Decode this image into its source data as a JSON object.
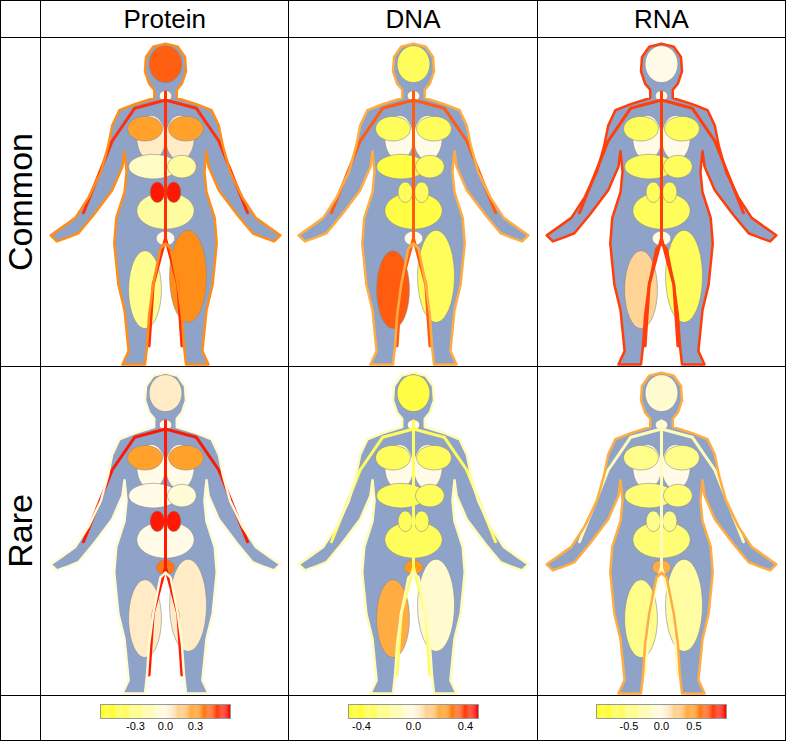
{
  "chart_data": {
    "type": "anatomogram",
    "rows": [
      "Common",
      "Rare"
    ],
    "columns": [
      {
        "title": "Protein",
        "colorbar": {
          "range": [
            -0.65,
            0.65
          ],
          "ticks": [
            -0.3,
            {
              "value": 0,
              "label": "0.0"
            },
            0.3
          ]
        },
        "values": [
          [
            0.45,
            0.0,
            0.05,
            0.3,
            -0.1,
            -0.2,
            -0.2,
            0.6,
            0.0,
            -0.25,
            0.35,
            0.55,
            0.35
          ],
          [
            0.05,
            0.0,
            0.0,
            0.3,
            0.0,
            -0.05,
            0.0,
            0.6,
            0.4,
            0.05,
            0.05,
            0.6,
            -0.05
          ]
        ]
      },
      {
        "title": "DNA",
        "colorbar": {
          "range": [
            -0.5,
            0.5
          ],
          "ticks": [
            -0.4,
            {
              "value": 0,
              "label": "0.0"
            },
            0.4
          ]
        },
        "values": [
          [
            -0.3,
            0.0,
            0.0,
            -0.3,
            -0.35,
            -0.3,
            -0.35,
            -0.3,
            0.0,
            0.35,
            -0.3,
            0.35,
            0.2
          ],
          [
            -0.35,
            0.0,
            0.0,
            -0.3,
            -0.3,
            -0.3,
            -0.3,
            -0.3,
            0.25,
            0.2,
            -0.05,
            -0.3,
            -0.1
          ]
        ]
      },
      {
        "title": "RNA",
        "colorbar": {
          "range": [
            -1,
            1
          ],
          "ticks": [
            -0.5,
            {
              "value": 0,
              "label": "0.0"
            },
            0.5
          ]
        },
        "values": [
          [
            0.0,
            0.0,
            0.0,
            -0.6,
            -0.6,
            -0.6,
            -0.6,
            -0.6,
            0.0,
            0.2,
            -0.6,
            0.8,
            0.8
          ],
          [
            -0.1,
            0.0,
            0.0,
            -0.4,
            -0.5,
            -0.5,
            -0.5,
            -0.4,
            0.4,
            -0.4,
            -0.3,
            -0.2,
            0.4
          ]
        ]
      }
    ]
  }
}
